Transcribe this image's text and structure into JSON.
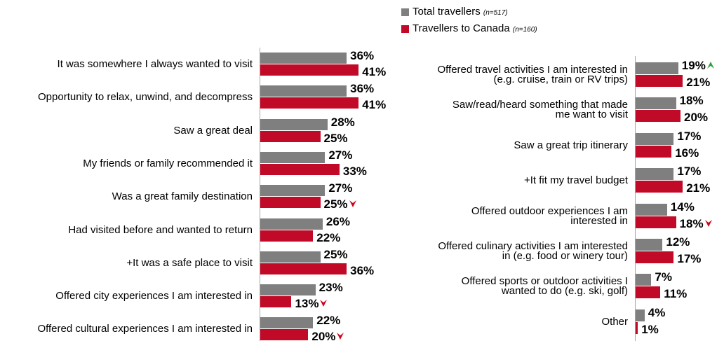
{
  "chart_data": [
    {
      "type": "bar",
      "orientation": "horizontal",
      "categories": [
        "It was somewhere I always wanted to visit",
        "Opportunity to relax, unwind, and decompress",
        "Saw a great deal",
        "My friends or family recommended it",
        "Was a great family destination",
        "Had visited before and wanted to return",
        "+It was a safe place to visit",
        "Offered city experiences I am interested in",
        "Offered cultural experiences I am interested in"
      ],
      "series": [
        {
          "name": "Total travellers",
          "note": "(n=517)",
          "color": "#7f7f7f",
          "values": [
            36,
            36,
            28,
            27,
            27,
            26,
            25,
            23,
            22
          ],
          "value_labels": [
            "36%",
            "36%",
            "28%",
            "27%",
            "27%",
            "26%",
            "25%",
            "23%",
            "22%"
          ],
          "markers": [
            null,
            null,
            null,
            null,
            null,
            null,
            null,
            null,
            null
          ]
        },
        {
          "name": "Travellers to Canada",
          "note": "(n=160)",
          "color": "#c00a27",
          "values": [
            41,
            41,
            25,
            33,
            25,
            22,
            36,
            13,
            20
          ],
          "value_labels": [
            "41%",
            "41%",
            "25%",
            "33%",
            "25%",
            "22%",
            "36%",
            "13%",
            "20%"
          ],
          "markers": [
            null,
            null,
            null,
            null,
            "down",
            null,
            null,
            "down",
            "down"
          ]
        }
      ]
    },
    {
      "type": "bar",
      "orientation": "horizontal",
      "categories": [
        "Offered travel activities I am interested in (e.g. cruise, train or RV trips)",
        "Saw/read/heard something that made me want to visit",
        "Saw a great trip itinerary",
        "+It fit my travel budget",
        "Offered outdoor experiences I am interested in",
        "Offered culinary activities I am interested in (e.g. food or winery tour)",
        "Offered sports or outdoor activities I wanted to do (e.g. ski, golf)",
        "Other"
      ],
      "series": [
        {
          "color": "#7f7f7f",
          "values": [
            19,
            18,
            17,
            17,
            14,
            12,
            7,
            4
          ],
          "value_labels": [
            "19%",
            "18%",
            "17%",
            "17%",
            "14%",
            "12%",
            "7%",
            "4%"
          ],
          "markers": [
            "up",
            null,
            null,
            null,
            null,
            null,
            null,
            null
          ]
        },
        {
          "color": "#c00a27",
          "values": [
            21,
            20,
            16,
            21,
            18,
            17,
            11,
            1
          ],
          "value_labels": [
            "21%",
            "20%",
            "16%",
            "21%",
            "18%",
            "17%",
            "11%",
            "1%"
          ],
          "markers": [
            null,
            null,
            null,
            null,
            "down",
            null,
            null,
            null
          ]
        }
      ]
    }
  ]
}
